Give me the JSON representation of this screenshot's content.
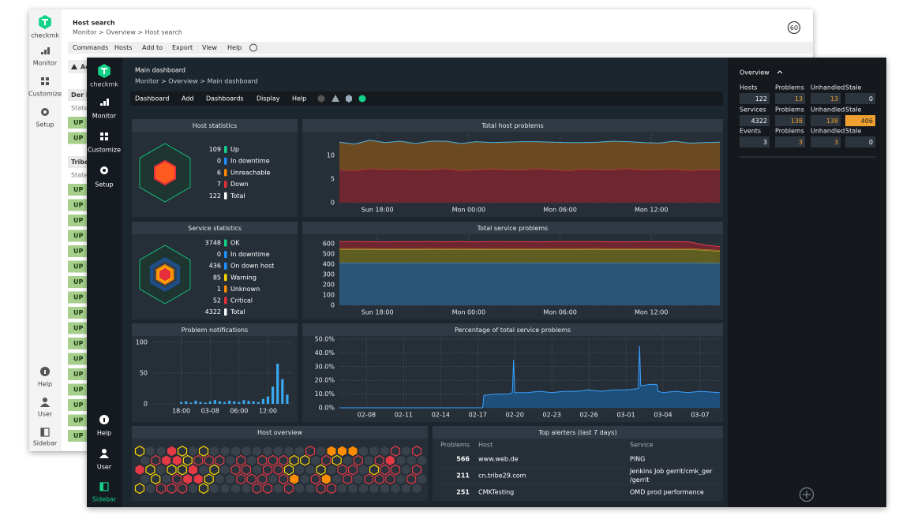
{
  "back_window": {
    "logo": "checkmk",
    "title": "Host search",
    "breadcrumb": "Monitor > Overview > Host search",
    "refresh": "60",
    "menu": [
      "Commands",
      "Hosts",
      "Add to",
      "Export",
      "View",
      "Help"
    ],
    "sidebar": [
      "Monitor",
      "Customize",
      "Setup",
      "Help",
      "User",
      "Sidebar"
    ],
    "notice": "Ac",
    "sections": [
      {
        "title": "Der M",
        "column": "State",
        "rows": [
          "UP",
          "UP"
        ]
      },
      {
        "title": "Tribe",
        "column": "State",
        "rows": [
          "UP",
          "UP",
          "UP",
          "UP",
          "UP",
          "UP",
          "UP",
          "UP",
          "UP",
          "UP",
          "UP",
          "UP",
          "UP",
          "UP",
          "UP",
          "UP",
          "UP"
        ]
      }
    ]
  },
  "main_window": {
    "logo": "checkmk",
    "title": "Main dashboard",
    "breadcrumb": "Monitor > Overview > Main dashboard",
    "menu": [
      "Dashboard",
      "Add",
      "Dashboards",
      "Display",
      "Help"
    ],
    "sidebar": [
      "Monitor",
      "Customize",
      "Setup",
      "Help",
      "User",
      "Sidebar"
    ]
  },
  "host_statistics": {
    "title": "Host statistics",
    "items": [
      {
        "value": 109,
        "label": "Up",
        "color": "#13d389"
      },
      {
        "value": 0,
        "label": "In downtime",
        "color": "#1e90ff"
      },
      {
        "value": 6,
        "label": "Unreachable",
        "color": "#ff8c00"
      },
      {
        "value": 7,
        "label": "Down",
        "color": "#e62e3c"
      },
      {
        "value": 122,
        "label": "Total",
        "color": "#ffffff"
      }
    ]
  },
  "service_statistics": {
    "title": "Service statistics",
    "items": [
      {
        "value": 3748,
        "label": "OK",
        "color": "#13d389"
      },
      {
        "value": 0,
        "label": "In downtime",
        "color": "#1e90ff"
      },
      {
        "value": 436,
        "label": "On down host",
        "color": "#1e90ff"
      },
      {
        "value": 85,
        "label": "Warning",
        "color": "#ffd700"
      },
      {
        "value": 1,
        "label": "Unknown",
        "color": "#ff8c00"
      },
      {
        "value": 52,
        "label": "Critical",
        "color": "#e62e3c"
      },
      {
        "value": 4322,
        "label": "Total",
        "color": "#ffffff"
      }
    ]
  },
  "total_host_problems": {
    "type": "stacked_area",
    "title": "Total host problems",
    "x": [
      0,
      1,
      2,
      3,
      4,
      5,
      6,
      7,
      8,
      9,
      10,
      11,
      12,
      13,
      14,
      15,
      16,
      17,
      18,
      19,
      20,
      21,
      22,
      23,
      24,
      25
    ],
    "xlim": [
      0,
      25
    ],
    "xticks": [
      {
        "value": 2.5,
        "label": "Sun 18:00"
      },
      {
        "value": 8.5,
        "label": "Mon 00:00"
      },
      {
        "value": 14.5,
        "label": "Mon 06:00"
      },
      {
        "value": 20.5,
        "label": "Mon 12:00"
      }
    ],
    "ylim": [
      0,
      14.5
    ],
    "yticks": [
      0,
      5,
      10
    ],
    "grid": true,
    "series": [
      {
        "color": "#6e2630",
        "line_color": "#e63946",
        "values": [
          7,
          6.8,
          7.2,
          7,
          7.1,
          6.9,
          7,
          7.2,
          6.8,
          7,
          7.1,
          7,
          6.9,
          7.2,
          7,
          6.8,
          7.1,
          7,
          7,
          7.2,
          6.9,
          7,
          7.1,
          6.8,
          7,
          7
        ]
      },
      {
        "color": "#6b4a22",
        "line_color": "#4fb0d8",
        "values": [
          5.8,
          5.6,
          6,
          5.7,
          5.9,
          5.6,
          6,
          5.8,
          5.7,
          5.9,
          5.6,
          5.8,
          6,
          5.7,
          5.8,
          5.9,
          5.6,
          5.8,
          6,
          5.7,
          5.8,
          5.6,
          5.9,
          5.8,
          5.7,
          5.8
        ]
      }
    ]
  },
  "total_service_problems": {
    "type": "stacked_area",
    "title": "Total service problems",
    "x": [
      0,
      1,
      2,
      3,
      4,
      5,
      6,
      7,
      8,
      9,
      10,
      11,
      12,
      13,
      14,
      15,
      16,
      17,
      18,
      19,
      20,
      21,
      22,
      23,
      24,
      25
    ],
    "xlim": [
      0,
      25
    ],
    "xticks": [
      {
        "value": 2.5,
        "label": "Sun 18:00"
      },
      {
        "value": 8.5,
        "label": "Mon 00:00"
      },
      {
        "value": 14.5,
        "label": "Mon 06:00"
      },
      {
        "value": 20.5,
        "label": "Mon 12:00"
      }
    ],
    "ylim": [
      0,
      685
    ],
    "yticks": [
      0,
      100,
      200,
      300,
      400,
      500,
      600
    ],
    "grid": true,
    "series": [
      {
        "color": "#2a5478",
        "line_color": "#4aa3df",
        "values": [
          415,
          415,
          416,
          415,
          415,
          414,
          415,
          415,
          416,
          415,
          415,
          415,
          414,
          415,
          415,
          416,
          415,
          415,
          415,
          414,
          415,
          415,
          415,
          415,
          412,
          410
        ]
      },
      {
        "color": "#5e5e22",
        "line_color": "#c8c83a",
        "values": [
          130,
          131,
          130,
          129,
          130,
          130,
          131,
          130,
          130,
          129,
          130,
          130,
          131,
          130,
          130,
          129,
          130,
          131,
          130,
          130,
          130,
          129,
          130,
          130,
          125,
          118
        ]
      },
      {
        "color": "#7a4420",
        "line_color": "#e08a30",
        "values": [
          10,
          10,
          10,
          10,
          10,
          10,
          10,
          10,
          10,
          10,
          10,
          10,
          10,
          10,
          10,
          10,
          10,
          10,
          10,
          10,
          10,
          10,
          10,
          10,
          10,
          10
        ]
      },
      {
        "color": "#6e2630",
        "line_color": "#e63946",
        "values": [
          65,
          66,
          64,
          65,
          65,
          66,
          65,
          64,
          65,
          65,
          66,
          65,
          65,
          64,
          65,
          66,
          65,
          65,
          64,
          65,
          65,
          66,
          65,
          62,
          40,
          35
        ]
      }
    ]
  },
  "problem_notifications": {
    "type": "bar",
    "title": "Problem notifications",
    "x": [
      6,
      7,
      8,
      9,
      10,
      11,
      12,
      13,
      14,
      15,
      16,
      17,
      18,
      19,
      20,
      21,
      22,
      23,
      24,
      25,
      26,
      27,
      28
    ],
    "values": [
      3,
      4,
      2,
      5,
      3,
      2,
      4,
      6,
      4,
      3,
      5,
      4,
      3,
      6,
      5,
      4,
      3,
      8,
      12,
      28,
      65,
      40,
      15
    ],
    "color": "#3aa8f0",
    "xlim": [
      0,
      29
    ],
    "xticks": [
      {
        "value": 6,
        "label": "18:00"
      },
      {
        "value": 12,
        "label": "03-08"
      },
      {
        "value": 18,
        "label": "06:00"
      },
      {
        "value": 24,
        "label": "12:00"
      }
    ],
    "ylim": [
      0,
      110
    ],
    "yticks": [
      0,
      50,
      100
    ],
    "grid": true
  },
  "percentage_service_problems": {
    "type": "area",
    "title": "Percentage of total service problems",
    "x": [
      -2.2,
      9.4,
      9.5,
      10.5,
      11.5,
      11.8,
      11.9,
      12.0,
      13,
      14,
      15,
      16,
      17,
      18,
      19,
      20,
      21,
      22.0,
      22.1,
      22.2,
      23,
      23.5,
      23.6,
      24,
      25,
      26,
      27,
      28.6
    ],
    "values": [
      0,
      0,
      9,
      10,
      10,
      11,
      35,
      11,
      11,
      12,
      11,
      12,
      12,
      13,
      12,
      13,
      13,
      14,
      45,
      16,
      17,
      17,
      12,
      11,
      12,
      11,
      12,
      11
    ],
    "color": "#1e4f7a",
    "line_color": "#3aa0ff",
    "xlim": [
      -2.2,
      28.6
    ],
    "xticks": [
      {
        "value": 0,
        "label": "02-08"
      },
      {
        "value": 3,
        "label": "02-11"
      },
      {
        "value": 6,
        "label": "02-14"
      },
      {
        "value": 9,
        "label": "02-17"
      },
      {
        "value": 12,
        "label": "02-20"
      },
      {
        "value": 15,
        "label": "02-23"
      },
      {
        "value": 18,
        "label": "02-26"
      },
      {
        "value": 21,
        "label": "03-01"
      },
      {
        "value": 24,
        "label": "03-04"
      },
      {
        "value": 27,
        "label": "03-07"
      }
    ],
    "ylim": [
      0,
      53.4
    ],
    "yticks": [
      {
        "value": 0,
        "label": "0.0%"
      },
      {
        "value": 10,
        "label": "10.0%"
      },
      {
        "value": 20,
        "label": "20.0%"
      },
      {
        "value": 30,
        "label": "30.0%"
      },
      {
        "value": 40,
        "label": "40.0%"
      },
      {
        "value": 50,
        "label": "50.0%"
      }
    ],
    "grid": true
  },
  "host_overview": {
    "title": "Host overview",
    "colors": {
      ".": "#39424b",
      "r": "#e63946",
      "R": "#e63946",
      "y": "#ffd700",
      "O": "#ff8c00"
    },
    "rows": [
      "y..Ry.y.........r.OOO...r.r",
      ".rRRyrrr.r.rrryy.ry.r.rR...",
      "Ry.yyR.y.rr.rry..y.rr.yrr.r",
      ".y.rRRy..rrr.rO.rO.r.rrr.r.",
      "y.rrr.y....rr.r..rr........"
    ]
  },
  "top_alerters": {
    "title": "Top alerters (last 7 days)",
    "columns": [
      "Problems",
      "Host",
      "Service"
    ],
    "rows": [
      {
        "problems": 566,
        "host": "www.web.de",
        "service": [
          "PING"
        ]
      },
      {
        "problems": 211,
        "host": "cn.tribe29.com",
        "service": [
          "Jenkins Job gerrit/cmk_ger",
          "/gerrit"
        ]
      },
      {
        "problems": 251,
        "host": "CMKTesting",
        "service": [
          "OMD prod performance"
        ]
      }
    ]
  },
  "overview": {
    "title": "Overview",
    "rows": [
      [
        {
          "label": "Hosts",
          "value": 122
        },
        {
          "label": "Problems",
          "value": 13
        },
        {
          "label": "Unhandled",
          "value": 13
        },
        {
          "label": "Stale",
          "value": 0
        }
      ],
      [
        {
          "label": "Services",
          "value": 4322
        },
        {
          "label": "Problems",
          "value": 138
        },
        {
          "label": "Unhandled",
          "value": 138
        },
        {
          "label": "Stale",
          "value": 406
        }
      ],
      [
        {
          "label": "Events",
          "value": 3
        },
        {
          "label": "Problems",
          "value": 3
        },
        {
          "label": "Unhandled",
          "value": 3
        },
        {
          "label": "Stale",
          "value": 0
        }
      ]
    ]
  }
}
